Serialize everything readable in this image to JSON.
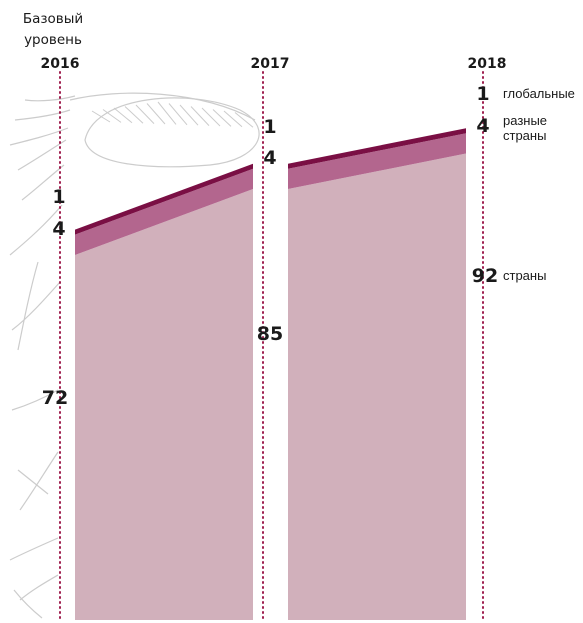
{
  "header": {
    "base_line1": "Базовый",
    "base_line2": "уровень"
  },
  "colors": {
    "countries": "#d1b0bb",
    "multi_country": "#b3668e",
    "global": "#7a0f44",
    "dotted_line": "#a02050",
    "globe_lines": "#cccccc"
  },
  "chart_data": {
    "type": "area",
    "x": [
      "2016",
      "2017",
      "2018"
    ],
    "series": [
      {
        "name": "страны",
        "values": [
          72,
          85,
          92
        ]
      },
      {
        "name": "разные страны",
        "values": [
          4,
          4,
          4
        ]
      },
      {
        "name": "глобальные",
        "values": [
          1,
          1,
          1
        ]
      }
    ],
    "legend_labels": [
      "глобальные",
      "разные страны",
      "страны"
    ],
    "ylim": [
      0,
      97
    ],
    "legend_position": "right"
  }
}
